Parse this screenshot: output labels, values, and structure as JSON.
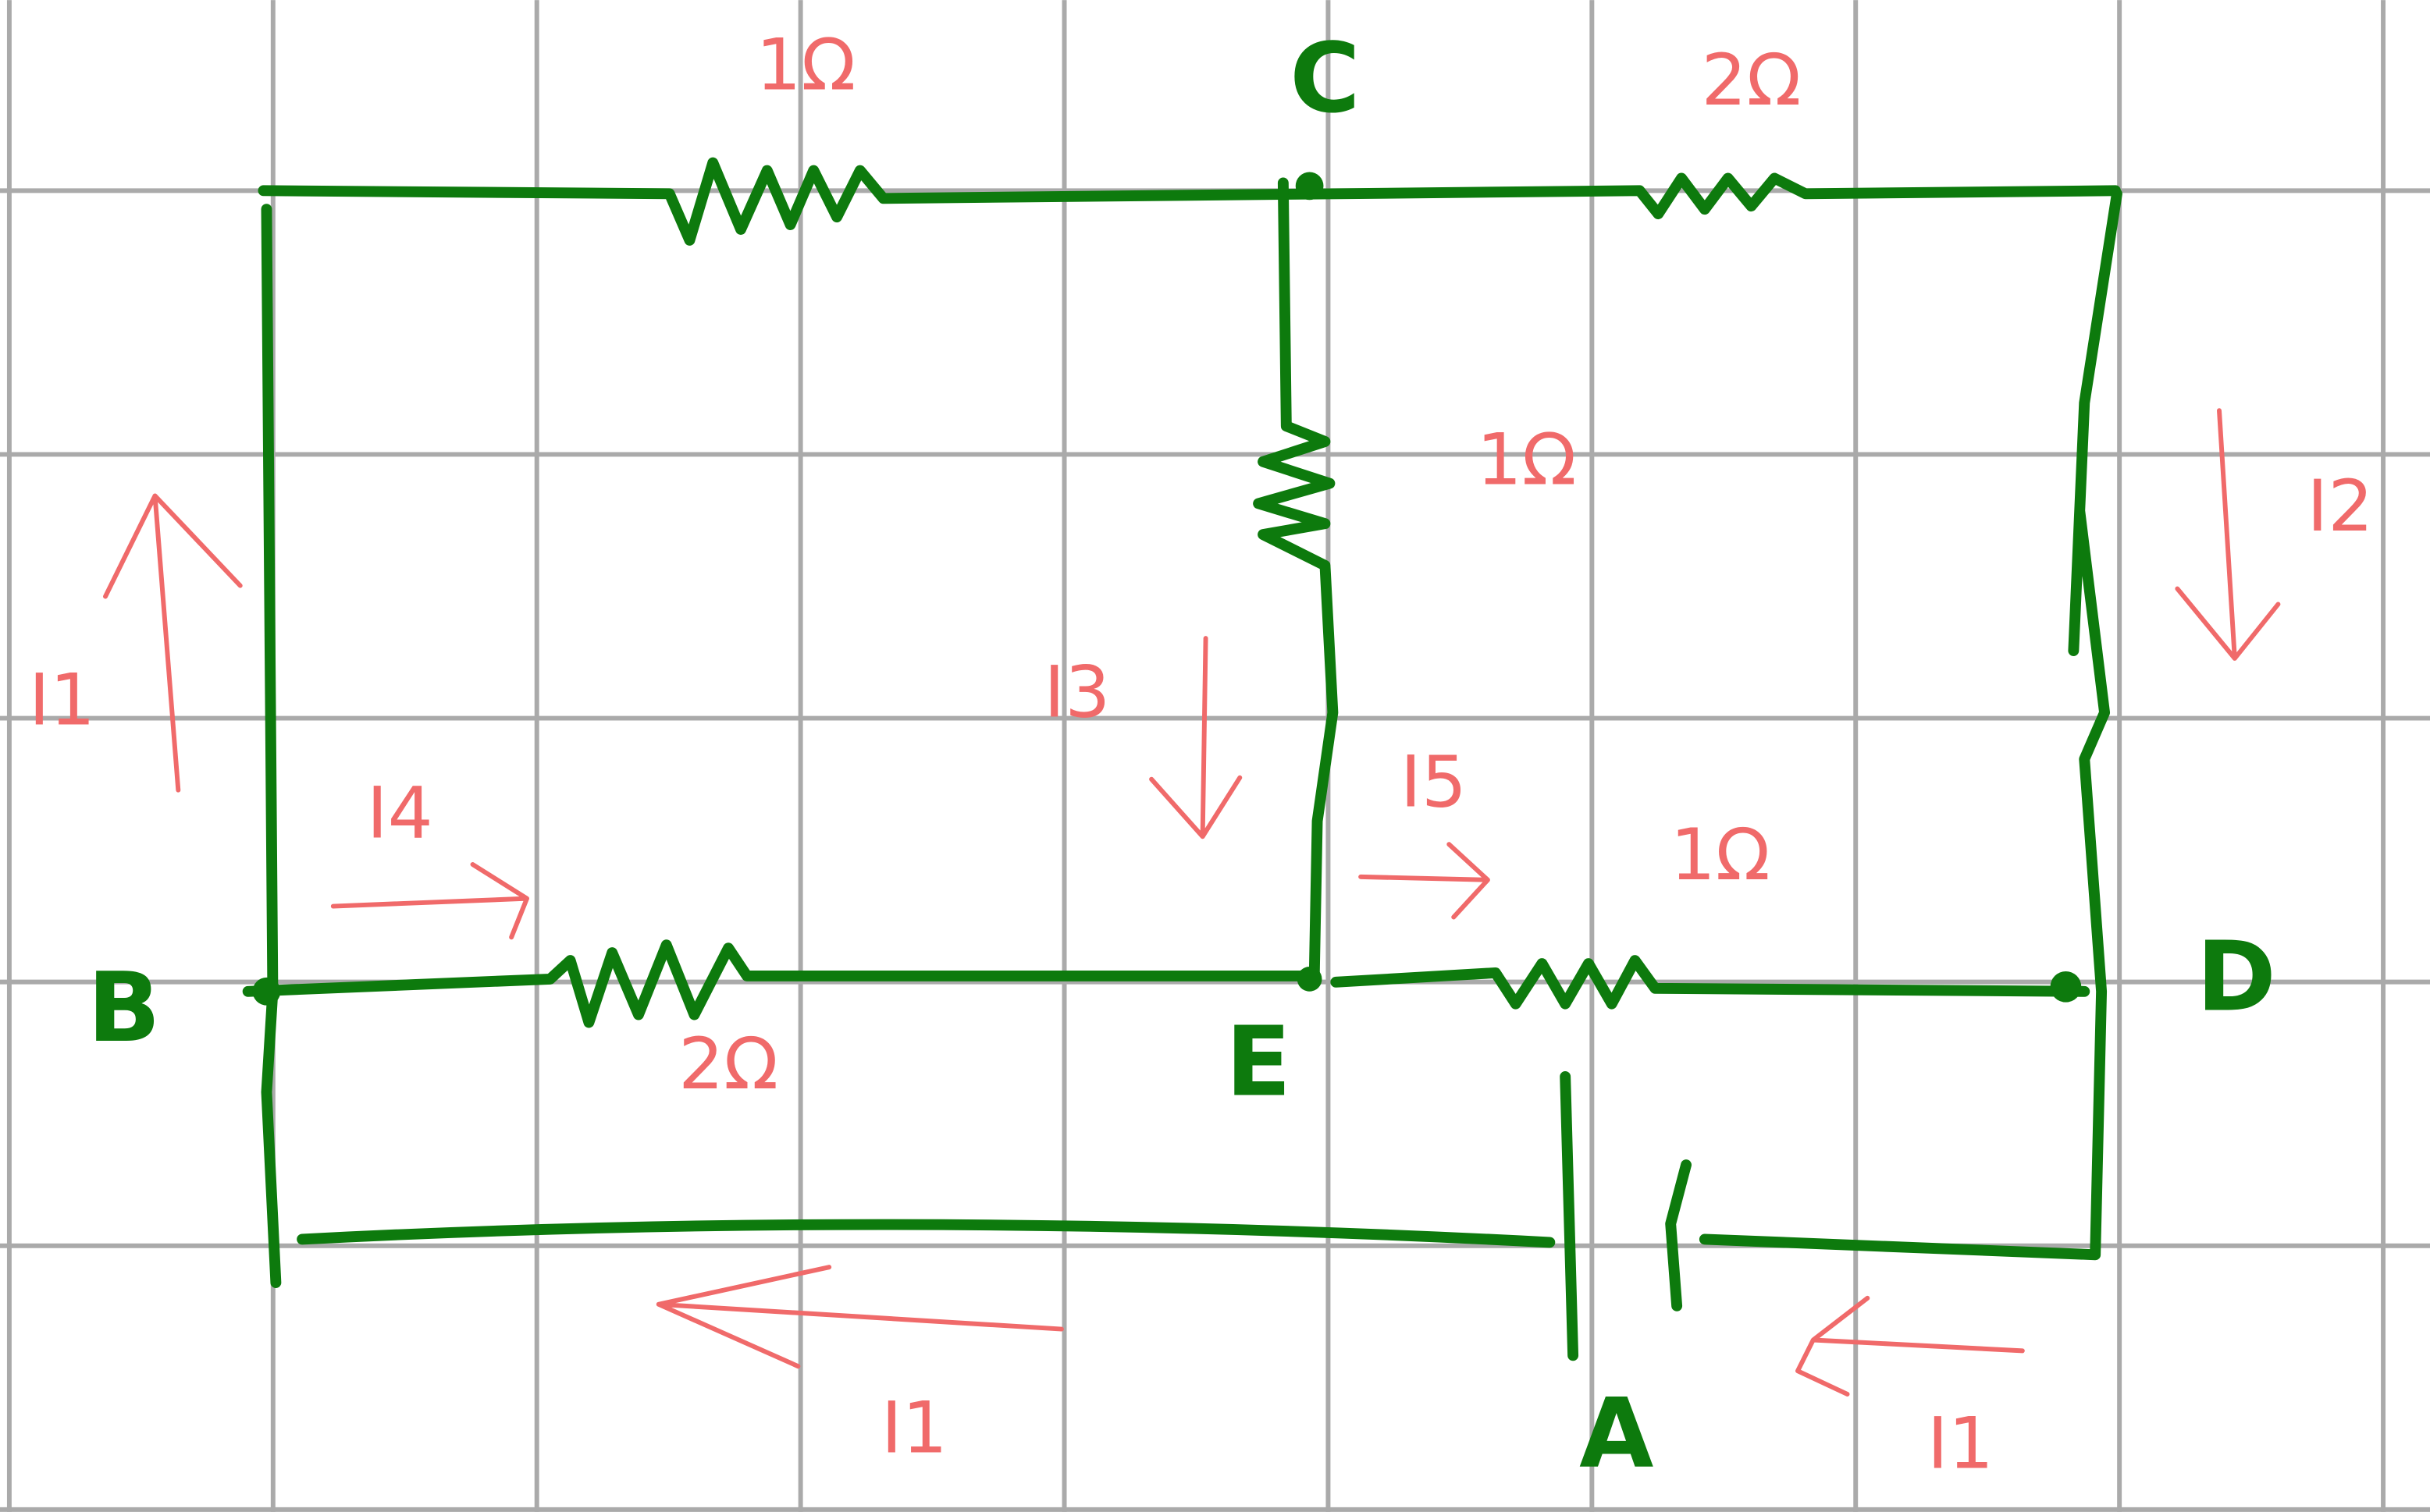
{
  "nodes": [
    "C",
    "B",
    "D",
    "E",
    "A"
  ],
  "resistors": [
    "1Ω",
    "2Ω",
    "1Ω",
    "1Ω",
    "2Ω"
  ],
  "currents": [
    "I1",
    "I2",
    "I3",
    "I4",
    "I5",
    "I1",
    "I1"
  ]
}
